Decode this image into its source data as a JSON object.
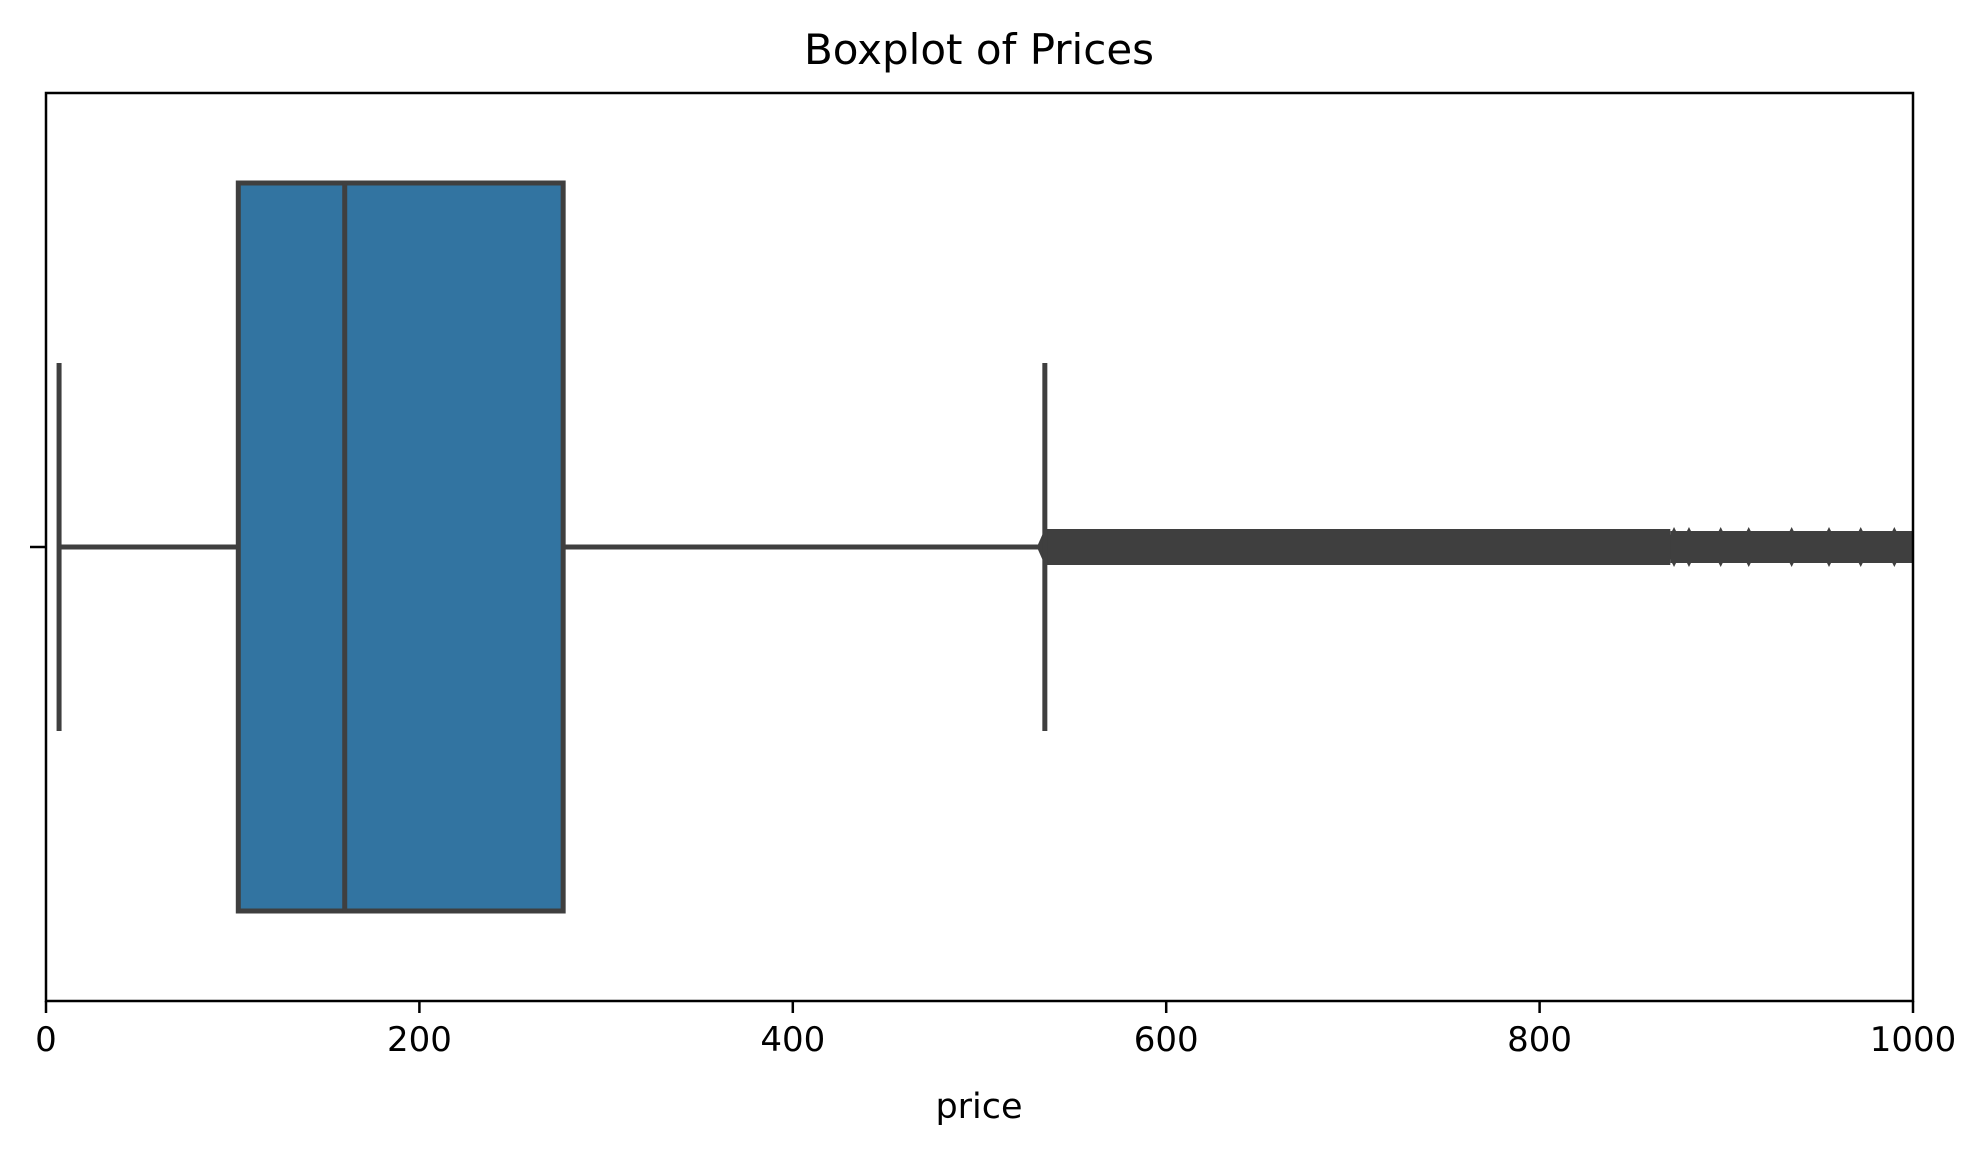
{
  "chart_data": {
    "type": "boxplot",
    "title": "Boxplot of Prices",
    "xlabel": "price",
    "ylabel": "",
    "xlim": [
      0,
      1000
    ],
    "xticks": [
      0,
      200,
      400,
      600,
      800,
      1000
    ],
    "xtick_labels": [
      "0",
      "200",
      "400",
      "600",
      "800",
      "1000"
    ],
    "grid": false,
    "box": {
      "whisker_low": 7,
      "q1": 103,
      "median": 160,
      "q3": 277,
      "whisker_high": 535
    },
    "outliers": {
      "range": [
        535,
        1000
      ],
      "density": "dense, nearly continuous cluster extending to the axis limit",
      "sparse_points": [
        872,
        880,
        897,
        912,
        935,
        955,
        972,
        990
      ]
    },
    "colors": {
      "box_fill": "#3274a1",
      "line": "#3f3f3f",
      "axes": "#000000",
      "background": "#ffffff"
    }
  }
}
